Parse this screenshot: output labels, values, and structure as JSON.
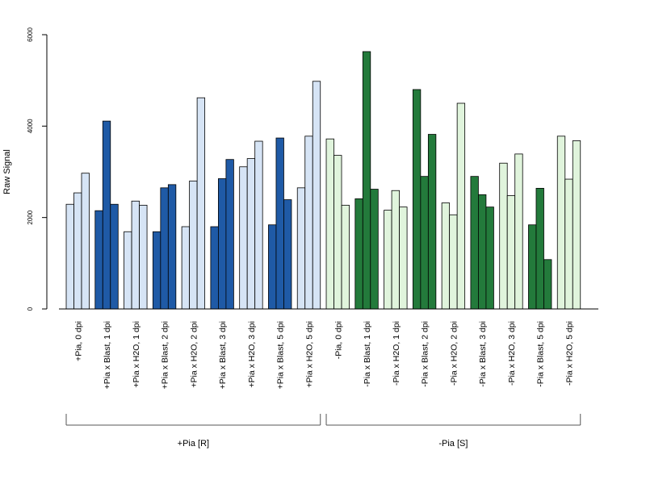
{
  "chart_data": {
    "type": "bar",
    "title": "",
    "xlabel": "",
    "ylabel": "Raw Signal",
    "ylim": [
      0,
      6000
    ],
    "yticks": [
      0,
      2000,
      4000,
      6000
    ],
    "grid": false,
    "legend": "none",
    "categories": [
      "+Pia, 0 dpi",
      "+Pia x Blast, 1 dpi",
      "+Pia x H2O, 1 dpi",
      "+Pia x Blast, 2 dpi",
      "+Pia x H2O, 2 dpi",
      "+Pia x Blast, 3 dpi",
      "+Pia x H2O, 3 dpi",
      "+Pia x Blast, 5 dpi",
      "+Pia x H2O, 5 dpi",
      "-Pia, 0 dpi",
      "-Pia x Blast, 1 dpi",
      "-Pia x H2O, 1 dpi",
      "-Pia x Blast, 2 dpi",
      "-Pia x H2O, 2 dpi",
      "-Pia x Blast, 3 dpi",
      "-Pia x H2O, 3 dpi",
      "-Pia x Blast, 5 dpi",
      "-Pia x H2O, 5 dpi"
    ],
    "replicates": [
      [
        2290,
        2540,
        2970
      ],
      [
        2150,
        4110,
        2290
      ],
      [
        1690,
        2360,
        2270
      ],
      [
        1690,
        2650,
        2720
      ],
      [
        1800,
        2800,
        4620
      ],
      [
        1800,
        2850,
        3270
      ],
      [
        3110,
        3290,
        3670
      ],
      [
        1840,
        3740,
        2390
      ],
      [
        2650,
        3780,
        4980
      ],
      [
        3720,
        3360,
        2270
      ],
      [
        2410,
        5630,
        2620
      ],
      [
        2160,
        2590,
        2230
      ],
      [
        4800,
        2900,
        3820
      ],
      [
        2320,
        2060,
        4500
      ],
      [
        2900,
        2500,
        2230
      ],
      [
        3190,
        2480,
        3390
      ],
      [
        1840,
        2640,
        1080
      ],
      [
        3780,
        2840,
        3680
      ]
    ],
    "colors": [
      "#d6e4f5",
      "#1f5aa6",
      "#d6e4f5",
      "#1f5aa6",
      "#d6e4f5",
      "#1f5aa6",
      "#d6e4f5",
      "#1f5aa6",
      "#d6e4f5",
      "#e0f4dc",
      "#237a3b",
      "#e0f4dc",
      "#237a3b",
      "#e0f4dc",
      "#237a3b",
      "#e0f4dc",
      "#237a3b",
      "#e0f4dc"
    ],
    "groups": [
      {
        "label": "+Pia [R]",
        "from": 0,
        "to": 8
      },
      {
        "label": "-Pia [S]",
        "from": 9,
        "to": 17
      }
    ]
  }
}
